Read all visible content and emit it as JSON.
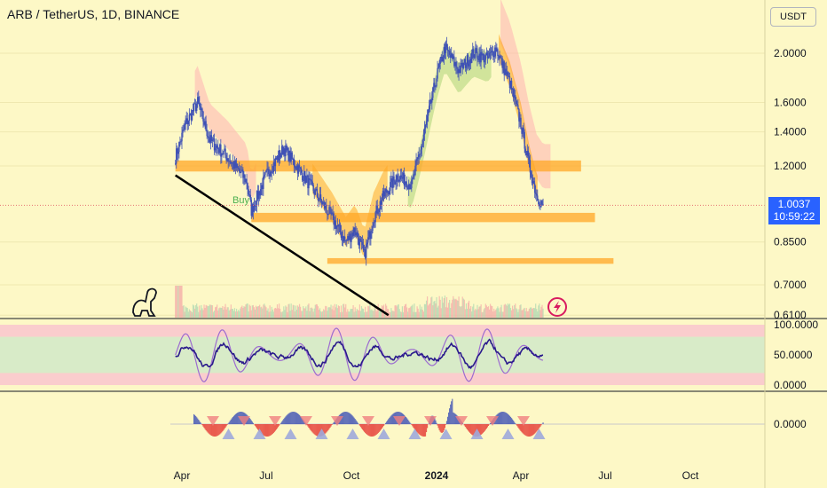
{
  "header": {
    "title": "ARB / TetherUS, 1D, BINANCE",
    "currency_button": "USDT"
  },
  "price_tag": {
    "value": "1.0037",
    "countdown": "10:59:22",
    "color": "#2962ff"
  },
  "annotation": {
    "buy": "Buy"
  },
  "colors": {
    "background": "#fdf8c6",
    "zones": "#ffa726",
    "trendline": "#000000",
    "candles": "#3f51b5",
    "cloud_orange": "#ff9800",
    "cloud_pink": "#ffb3b3",
    "oscillator_fast": "#9c6bd0",
    "oscillator_slow": "#2a1a8c"
  },
  "chart_data": [
    {
      "type": "line",
      "panel": "price",
      "scale": "log",
      "y_ticks": [
        {
          "value": 2.0,
          "label": "2.0000"
        },
        {
          "value": 1.6,
          "label": "1.6000"
        },
        {
          "value": 1.4,
          "label": "1.4000"
        },
        {
          "value": 1.2,
          "label": "1.2000"
        },
        {
          "value": 0.85,
          "label": "0.8500"
        },
        {
          "value": 0.7,
          "label": "0.7000"
        },
        {
          "value": 0.61,
          "label": "0.6100"
        }
      ],
      "x_ticks": [
        {
          "label": "Apr",
          "date": "2023-04-01"
        },
        {
          "label": "Jul",
          "date": "2023-07-01"
        },
        {
          "label": "Oct",
          "date": "2023-10-01"
        },
        {
          "label": "2024",
          "date": "2024-01-01"
        },
        {
          "label": "Apr",
          "date": "2024-04-01"
        },
        {
          "label": "Jul",
          "date": "2024-07-01"
        },
        {
          "label": "Oct",
          "date": "2024-10-01"
        }
      ],
      "series": [
        {
          "points": [
            [
              "2023-03-25",
              1.25
            ],
            [
              "2023-04-05",
              1.45
            ],
            [
              "2023-04-18",
              1.6
            ],
            [
              "2023-05-01",
              1.35
            ],
            [
              "2023-05-20",
              1.25
            ],
            [
              "2023-06-10",
              1.12
            ],
            [
              "2023-06-15",
              0.98
            ],
            [
              "2023-07-01",
              1.15
            ],
            [
              "2023-07-20",
              1.3
            ],
            [
              "2023-08-10",
              1.15
            ],
            [
              "2023-08-25",
              1.05
            ],
            [
              "2023-09-10",
              0.95
            ],
            [
              "2023-09-25",
              0.85
            ],
            [
              "2023-10-05",
              0.9
            ],
            [
              "2023-10-15",
              0.8
            ],
            [
              "2023-10-25",
              0.95
            ],
            [
              "2023-11-05",
              1.05
            ],
            [
              "2023-11-20",
              1.15
            ],
            [
              "2023-12-05",
              1.1
            ],
            [
              "2023-12-15",
              1.3
            ],
            [
              "2024-01-01",
              1.8
            ],
            [
              "2024-01-10",
              2.05
            ],
            [
              "2024-01-25",
              1.85
            ],
            [
              "2024-02-10",
              2.0
            ],
            [
              "2024-02-25",
              1.95
            ],
            [
              "2024-03-05",
              2.05
            ],
            [
              "2024-03-12",
              1.9
            ],
            [
              "2024-03-20",
              1.75
            ],
            [
              "2024-04-01",
              1.45
            ],
            [
              "2024-04-10",
              1.2
            ],
            [
              "2024-04-18",
              1.05
            ],
            [
              "2024-04-25",
              1.0037
            ]
          ]
        }
      ],
      "zones": [
        {
          "from": "2023-03-25",
          "to": "2024-06-05",
          "low": 1.17,
          "high": 1.23
        },
        {
          "from": "2023-06-15",
          "to": "2024-06-20",
          "low": 0.93,
          "high": 0.97
        },
        {
          "from": "2023-09-05",
          "to": "2024-07-10",
          "low": 0.77,
          "high": 0.79
        }
      ],
      "trendline": {
        "from": [
          "2023-03-25",
          1.15
        ],
        "to": [
          "2023-11-10",
          0.61
        ]
      }
    },
    {
      "type": "line",
      "panel": "oscillator",
      "y_ticks": [
        {
          "value": 100,
          "label": "100.0000"
        },
        {
          "value": 50,
          "label": "50.0000"
        },
        {
          "value": 0,
          "label": "0.0000"
        }
      ],
      "bands": [
        {
          "low": 80,
          "high": 100,
          "color": "#f8bbd0"
        },
        {
          "low": 20,
          "high": 80,
          "color": "#c8e6c9"
        },
        {
          "low": 0,
          "high": 20,
          "color": "#f8bbd0"
        }
      ]
    },
    {
      "type": "bar",
      "panel": "histogram",
      "y_ticks": [
        {
          "value": 0,
          "label": "0.0000"
        }
      ]
    }
  ]
}
